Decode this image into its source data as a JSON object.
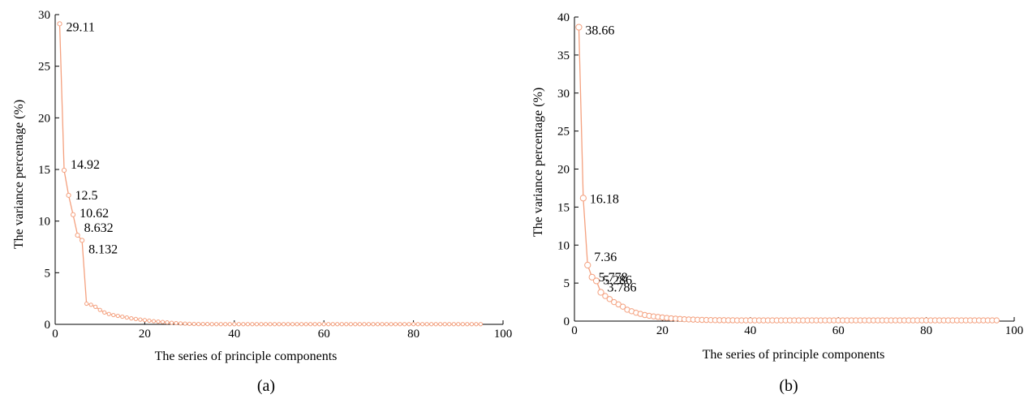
{
  "chart_data": [
    {
      "type": "line",
      "caption": "(a)",
      "xlabel": "The series of principle components",
      "ylabel": "The variance percentage (%)",
      "xlim": [
        0,
        100
      ],
      "ylim": [
        0,
        30
      ],
      "xticks": [
        0,
        20,
        40,
        60,
        80,
        100
      ],
      "yticks": [
        0,
        5,
        10,
        15,
        20,
        25,
        30
      ],
      "marker": "circle",
      "color": "#f4a07e",
      "x": [
        1,
        2,
        3,
        4,
        5,
        6,
        7,
        8,
        9,
        10,
        11,
        12,
        13,
        14,
        15,
        16,
        17,
        18,
        19,
        20,
        21,
        22,
        23,
        24,
        25,
        26,
        27,
        28,
        29,
        30,
        31,
        32,
        33,
        34,
        35,
        36,
        37,
        38,
        39,
        40,
        41,
        42,
        43,
        44,
        45,
        46,
        47,
        48,
        49,
        50,
        51,
        52,
        53,
        54,
        55,
        56,
        57,
        58,
        59,
        60,
        61,
        62,
        63,
        64,
        65,
        66,
        67,
        68,
        69,
        70,
        71,
        72,
        73,
        74,
        75,
        76,
        77,
        78,
        79,
        80,
        81,
        82,
        83,
        84,
        85,
        86,
        87,
        88,
        89,
        90,
        91,
        92,
        93,
        94,
        95
      ],
      "y": [
        29.11,
        14.92,
        12.5,
        10.62,
        8.632,
        8.132,
        2.0,
        1.9,
        1.7,
        1.4,
        1.15,
        1.0,
        0.9,
        0.82,
        0.74,
        0.66,
        0.58,
        0.52,
        0.46,
        0.41,
        0.36,
        0.31,
        0.27,
        0.23,
        0.19,
        0.15,
        0.12,
        0.09,
        0.07,
        0.05,
        0.04,
        0.03,
        0.03,
        0.03,
        0.02,
        0.02,
        0.02,
        0.02,
        0.02,
        0.02,
        0.02,
        0.02,
        0.02,
        0.02,
        0.02,
        0.02,
        0.02,
        0.02,
        0.02,
        0.02,
        0.02,
        0.02,
        0.02,
        0.02,
        0.02,
        0.02,
        0.02,
        0.02,
        0.02,
        0.02,
        0.02,
        0.02,
        0.02,
        0.02,
        0.02,
        0.02,
        0.02,
        0.02,
        0.02,
        0.02,
        0.02,
        0.02,
        0.02,
        0.02,
        0.02,
        0.02,
        0.02,
        0.02,
        0.02,
        0.02,
        0.02,
        0.02,
        0.02,
        0.02,
        0.02,
        0.02,
        0.02,
        0.02,
        0.02,
        0.02,
        0.02,
        0.02,
        0.02,
        0.02,
        0.02
      ],
      "annotations": [
        {
          "x": 1,
          "y": 29.11,
          "text": "29.11"
        },
        {
          "x": 2,
          "y": 14.92,
          "text": "14.92"
        },
        {
          "x": 3,
          "y": 12.5,
          "text": "12.5"
        },
        {
          "x": 4,
          "y": 10.62,
          "text": "10.62"
        },
        {
          "x": 5,
          "y": 8.632,
          "text": "8.632"
        },
        {
          "x": 6,
          "y": 8.132,
          "text": "8.132"
        }
      ]
    },
    {
      "type": "line",
      "caption": "(b)",
      "xlabel": "The series of principle components",
      "ylabel": "The variance percentage (%)",
      "xlim": [
        0,
        100
      ],
      "ylim": [
        0,
        40
      ],
      "xticks": [
        0,
        20,
        40,
        60,
        80,
        100
      ],
      "yticks": [
        0,
        5,
        10,
        15,
        20,
        25,
        30,
        35,
        40
      ],
      "marker": "circle",
      "color": "#f4a07e",
      "x": [
        1,
        2,
        3,
        4,
        5,
        6,
        7,
        8,
        9,
        10,
        11,
        12,
        13,
        14,
        15,
        16,
        17,
        18,
        19,
        20,
        21,
        22,
        23,
        24,
        25,
        26,
        27,
        28,
        29,
        30,
        31,
        32,
        33,
        34,
        35,
        36,
        37,
        38,
        39,
        40,
        41,
        42,
        43,
        44,
        45,
        46,
        47,
        48,
        49,
        50,
        51,
        52,
        53,
        54,
        55,
        56,
        57,
        58,
        59,
        60,
        61,
        62,
        63,
        64,
        65,
        66,
        67,
        68,
        69,
        70,
        71,
        72,
        73,
        74,
        75,
        76,
        77,
        78,
        79,
        80,
        81,
        82,
        83,
        84,
        85,
        86,
        87,
        88,
        89,
        90,
        91,
        92,
        93,
        94,
        95,
        96
      ],
      "y": [
        38.66,
        16.18,
        7.36,
        5.778,
        5.286,
        3.786,
        3.3,
        2.9,
        2.5,
        2.2,
        1.9,
        1.5,
        1.3,
        1.1,
        0.95,
        0.8,
        0.7,
        0.62,
        0.55,
        0.48,
        0.42,
        0.37,
        0.33,
        0.29,
        0.25,
        0.22,
        0.2,
        0.18,
        0.16,
        0.15,
        0.14,
        0.13,
        0.12,
        0.12,
        0.11,
        0.11,
        0.1,
        0.1,
        0.1,
        0.1,
        0.1,
        0.1,
        0.1,
        0.1,
        0.1,
        0.1,
        0.1,
        0.1,
        0.1,
        0.1,
        0.1,
        0.1,
        0.1,
        0.1,
        0.1,
        0.1,
        0.1,
        0.1,
        0.1,
        0.1,
        0.1,
        0.1,
        0.1,
        0.1,
        0.1,
        0.1,
        0.1,
        0.1,
        0.1,
        0.1,
        0.1,
        0.1,
        0.1,
        0.1,
        0.1,
        0.1,
        0.1,
        0.1,
        0.1,
        0.1,
        0.1,
        0.1,
        0.1,
        0.1,
        0.1,
        0.1,
        0.1,
        0.1,
        0.1,
        0.1,
        0.1,
        0.1,
        0.1,
        0.1,
        0.1,
        0.1
      ],
      "annotations": [
        {
          "x": 1,
          "y": 38.66,
          "text": "38.66"
        },
        {
          "x": 2,
          "y": 16.18,
          "text": "16.18"
        },
        {
          "x": 3,
          "y": 7.36,
          "text": "7.36"
        },
        {
          "x": 4,
          "y": 5.778,
          "text": "5.778"
        },
        {
          "x": 5,
          "y": 5.286,
          "text": "5.286"
        },
        {
          "x": 6,
          "y": 3.786,
          "text": "3.786"
        }
      ]
    }
  ]
}
